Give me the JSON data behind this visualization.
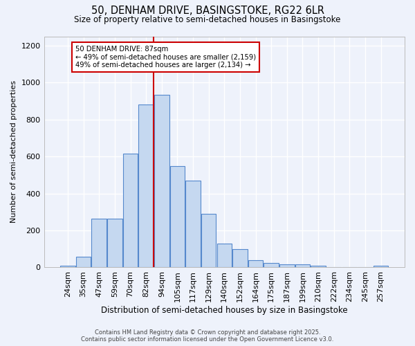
{
  "title1": "50, DENHAM DRIVE, BASINGSTOKE, RG22 6LR",
  "title2": "Size of property relative to semi-detached houses in Basingstoke",
  "xlabel": "Distribution of semi-detached houses by size in Basingstoke",
  "ylabel": "Number of semi-detached properties",
  "categories": [
    "24sqm",
    "35sqm",
    "47sqm",
    "59sqm",
    "70sqm",
    "82sqm",
    "94sqm",
    "105sqm",
    "117sqm",
    "129sqm",
    "140sqm",
    "152sqm",
    "164sqm",
    "175sqm",
    "187sqm",
    "199sqm",
    "210sqm",
    "222sqm",
    "234sqm",
    "245sqm",
    "257sqm"
  ],
  "values": [
    10,
    57,
    265,
    265,
    615,
    880,
    935,
    550,
    470,
    290,
    130,
    100,
    38,
    25,
    18,
    15,
    8,
    3,
    2,
    1,
    8
  ],
  "bar_color": "#c5d8f0",
  "bar_edge_color": "#5588cc",
  "background_color": "#eef2fb",
  "grid_color": "#ffffff",
  "vline_color": "#cc0000",
  "annotation_title": "50 DENHAM DRIVE: 87sqm",
  "annotation_line1": "← 49% of semi-detached houses are smaller (2,159)",
  "annotation_line2": "49% of semi-detached houses are larger (2,134) →",
  "annotation_box_color": "#ffffff",
  "annotation_box_edge": "#cc0000",
  "footer1": "Contains HM Land Registry data © Crown copyright and database right 2025.",
  "footer2": "Contains public sector information licensed under the Open Government Licence v3.0.",
  "ylim": [
    0,
    1250
  ],
  "yticks": [
    0,
    200,
    400,
    600,
    800,
    1000,
    1200
  ]
}
